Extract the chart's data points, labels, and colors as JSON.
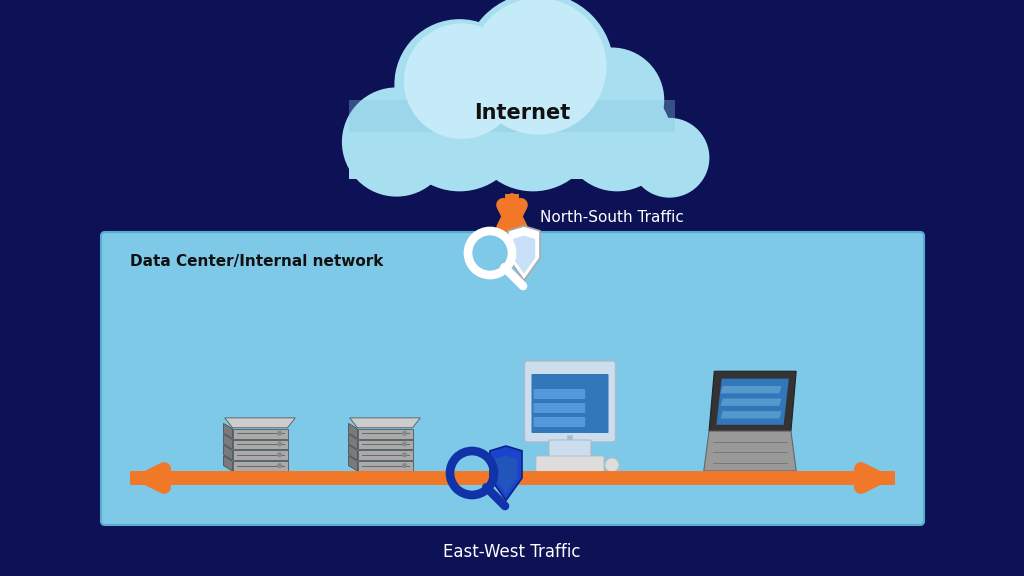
{
  "bg_color": "#0d1155",
  "cloud_main_color": "#a8dff0",
  "cloud_shadow_color": "#c5eaf8",
  "cloud_dark_color": "#85c8e0",
  "datacenter_box_color": "#7ec8e8",
  "datacenter_box_edge": "#5aaccf",
  "arrow_color": "#f07828",
  "internet_label": "Internet",
  "ns_traffic_label": "North-South Traffic",
  "ew_traffic_label": "East-West Traffic",
  "datacenter_label": "Data Center/Internal network",
  "label_color": "#ffffff",
  "datacenter_label_color": "#111111",
  "server_color1": "#888888",
  "server_color2": "#666666",
  "server_color3": "#999999"
}
